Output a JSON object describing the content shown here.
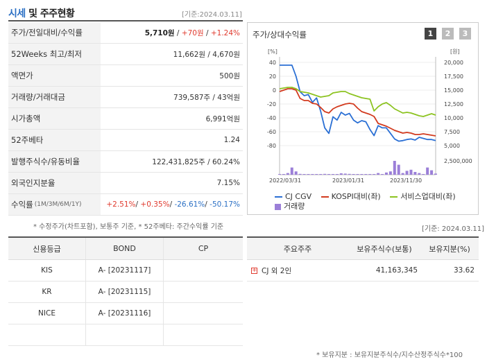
{
  "header": {
    "title_accent": "시세",
    "title_rest": " 및 주주현황",
    "date": "[기준:2024.03.11]"
  },
  "info_rows": [
    {
      "label": "주가/전일대비/수익률",
      "price": "5,710원",
      "sep1": " / ",
      "change": "+70원",
      "sep2": " / ",
      "rate": "+1.24%"
    },
    {
      "label": "52Weeks 최고/최저",
      "value": "11,662원 / 4,670원"
    },
    {
      "label": "액면가",
      "value": "500원"
    },
    {
      "label": "거래량/거래대금",
      "value": "739,587주 / 43억원"
    },
    {
      "label": "시가총액",
      "value": "6,991억원"
    },
    {
      "label": "52주베타",
      "value": "1.24"
    },
    {
      "label": "발행주식수/유동비율",
      "value": "122,431,825주 / 60.24%"
    },
    {
      "label": "외국인지분율",
      "value": "7.15%"
    },
    {
      "label": "수익률",
      "label_small": "(1M/3M/6M/1Y)",
      "r1": "+2.51%",
      "r2": "+0.35%",
      "r3": "-26.61%",
      "r4": "-50.17%"
    }
  ],
  "note1": "* 수정주가(차트포함), 보통주 기준, * 52주베타: 주간수익률 기준",
  "chart_panel": {
    "title": "주가/상대수익률",
    "pages": [
      "1",
      "2",
      "3"
    ],
    "legend": [
      {
        "label": "CJ CGV",
        "color": "#2a6fd4",
        "kind": "line"
      },
      {
        "label": "KOSPI대비(좌)",
        "color": "#d23a1e",
        "kind": "line"
      },
      {
        "label": "서비스업대비(좌)",
        "color": "#8cc320",
        "kind": "line"
      },
      {
        "label": "거래량",
        "color": "#9b7fd8",
        "kind": "box"
      }
    ]
  },
  "chart_data": {
    "type": "line",
    "left_axis_unit": "[%]",
    "right_axis_unit": "[원]",
    "left_ticks": [
      "40",
      "20",
      "0",
      "-20",
      "-40",
      "-60",
      "-80"
    ],
    "right_ticks": [
      "20,000",
      "17,500",
      "15,000",
      "12,500",
      "10,000",
      "7,500",
      "5,000"
    ],
    "volume_tick": "2,500,000",
    "x_labels": [
      "2022/03/31",
      "2023/01/31",
      "2023/11/30"
    ],
    "ylim_left": [
      -80,
      40
    ],
    "ylim_right": [
      5000,
      20000
    ],
    "series": [
      {
        "name": "CJ CGV",
        "axis": "right",
        "color": "#2a6fd4",
        "values": [
          19500,
          19500,
          19500,
          19500,
          17500,
          14700,
          14000,
          14200,
          12800,
          13600,
          11200,
          8200,
          7200,
          10200,
          9600,
          11000,
          10500,
          10800,
          9600,
          9100,
          9500,
          9300,
          7900,
          6800,
          8600,
          8200,
          8200,
          7200,
          6200,
          5800,
          5900,
          6100,
          6200,
          6000,
          6500,
          6300,
          6100,
          6100,
          5900
        ]
      },
      {
        "name": "KOSPI대비(좌)",
        "axis": "left",
        "color": "#d23a1e",
        "values": [
          -2,
          0,
          2,
          2,
          0,
          -12,
          -15,
          -15,
          -19,
          -20,
          -25,
          -31,
          -33,
          -27,
          -24,
          -22,
          -20,
          -19,
          -20,
          -26,
          -31,
          -33,
          -35,
          -38,
          -48,
          -50,
          -52,
          -55,
          -58,
          -60,
          -62,
          -61,
          -62,
          -64,
          -64,
          -63,
          -64,
          -65,
          -66
        ]
      },
      {
        "name": "서비스업대비(좌)",
        "axis": "left",
        "color": "#8cc320",
        "values": [
          2,
          3,
          4,
          4,
          2,
          -2,
          -3,
          -4,
          -6,
          -8,
          -10,
          -9,
          -8,
          -4,
          -3,
          -2,
          -2,
          -5,
          -7,
          -9,
          -11,
          -12,
          -13,
          -30,
          -24,
          -20,
          -18,
          -22,
          -27,
          -30,
          -33,
          -32,
          -33,
          -35,
          -37,
          -38,
          -36,
          -34,
          -36
        ]
      },
      {
        "name": "거래량",
        "axis": "volume",
        "color": "#9b7fd8",
        "values": [
          80000,
          120000,
          300000,
          1300000,
          600000,
          150000,
          100000,
          100000,
          80000,
          100000,
          90000,
          150000,
          80000,
          60000,
          80000,
          250000,
          200000,
          150000,
          80000,
          60000,
          50000,
          80000,
          60000,
          100000,
          300000,
          100000,
          400000,
          600000,
          2500000,
          1800000,
          300000,
          700000,
          900000,
          500000,
          300000,
          100000,
          1300000,
          800000,
          200000
        ]
      }
    ]
  },
  "date_mid": "[기준: 2024.03.11]",
  "credit_table": {
    "headers": [
      "신용등급",
      "BOND",
      "CP"
    ],
    "rows": [
      {
        "agency": "KIS",
        "bond": "A-  [20231117]",
        "cp": ""
      },
      {
        "agency": "KR",
        "bond": "A-  [20231115]",
        "cp": ""
      },
      {
        "agency": "NICE",
        "bond": "A-  [20231116]",
        "cp": ""
      }
    ]
  },
  "holder_table": {
    "headers": [
      "주요주주",
      "보유주식수(보통)",
      "보유지분(%)"
    ],
    "rows": [
      {
        "name": "CJ 외 2인",
        "shares": "41,163,345",
        "pct": "33.62"
      }
    ]
  },
  "note2": "* 보유지분 : 보유지분주식수/지수산정주식수*100"
}
